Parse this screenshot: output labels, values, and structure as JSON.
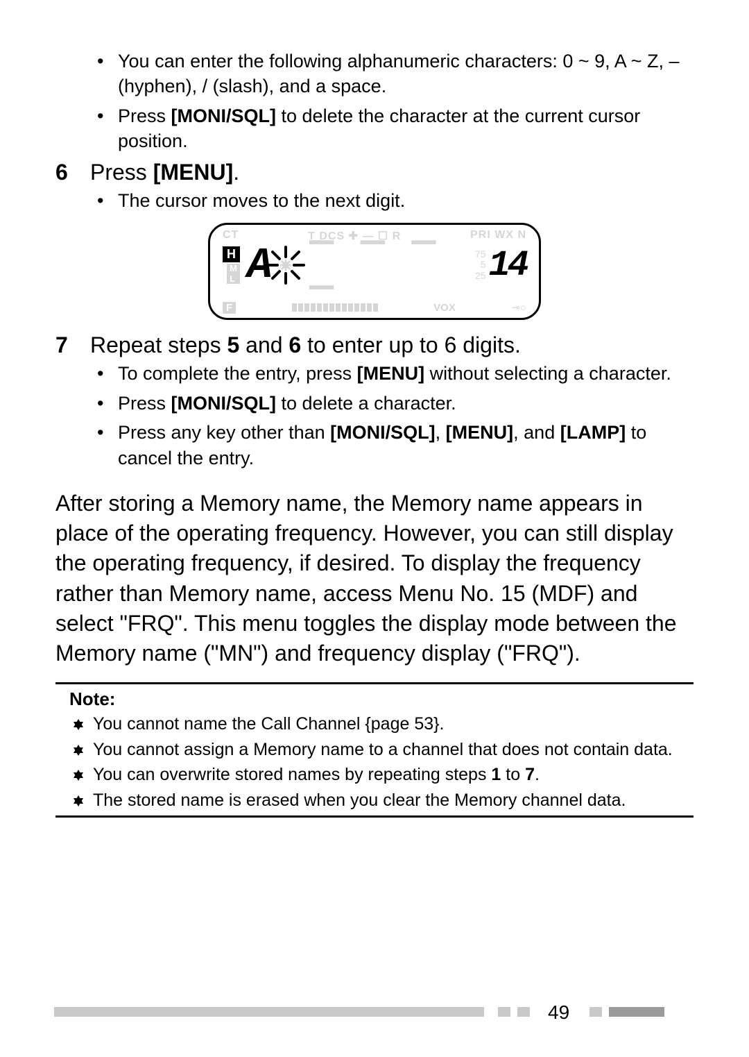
{
  "page_number": "49",
  "pre_bullets": [
    {
      "text": "You can enter the following alphanumeric characters: 0 ~ 9, A ~ Z, – (hyphen), / (slash), and a space."
    },
    {
      "html": "Press <b>[MONI/SQL]</b> to delete the character at the current cursor position."
    }
  ],
  "step6": {
    "num": "6",
    "html": "Press <b>[MENU]</b>."
  },
  "step6_bullets": [
    {
      "text": "The cursor moves to the next digit."
    }
  ],
  "display": {
    "top_left_ghost": "CT",
    "top_symbols_ghost": "T DCS ✚ — ☐ R",
    "top_right_ghost": "PRI WX N",
    "h_badge": "H",
    "m_badge": "M",
    "l_badge": "L",
    "seg_main_ghost_prefix": "",
    "seg_A": "A",
    "cursor_char": "✳",
    "right_75": "75",
    "right_5": "5",
    "right_25": "25",
    "big_right": "14",
    "f_ghost": "F",
    "vox_ghost": "VOX",
    "key_ghost": "⊸○"
  },
  "step7": {
    "num": "7",
    "html": "Repeat steps <b>5</b> and <b>6</b> to enter up to 6 digits."
  },
  "step7_bullets": [
    {
      "html": "To complete the entry, press <b>[MENU]</b> without selecting a character."
    },
    {
      "html": "Press <b>[MONI/SQL]</b> to delete a character."
    },
    {
      "html": "Press any key other than <b>[MONI/SQL]</b>, <b>[MENU]</b>, and <b>[LAMP]</b> to cancel the entry."
    }
  ],
  "body_para": "After storing a Memory name, the Memory name appears in place of the operating frequency.  However, you can still display the operating frequency, if desired. To display the frequency rather than Memory name, access Menu No. 15 (MDF) and select \"FRQ\".  This menu toggles the display mode between the Memory name (\"MN\") and frequency display (\"FRQ\").",
  "note_title": "Note:",
  "notes": [
    {
      "text": "You cannot name the Call Channel {page 53}."
    },
    {
      "text": "You cannot assign a Memory name to a channel that does not contain data."
    },
    {
      "html": "You can overwrite stored names by repeating steps <b>1</b> to <b>7</b>."
    },
    {
      "text": "The stored name is erased when you clear the Memory channel data."
    }
  ],
  "colors": {
    "text": "#000000",
    "ghost": "#d6d6d6",
    "footer_light": "#c9c9c9",
    "footer_dark": "#9a9a9a",
    "background": "#ffffff"
  },
  "fonts": {
    "body_size_pt": 24,
    "step_size_pt": 24,
    "bullet_size_pt": 20,
    "note_size_pt": 19
  }
}
